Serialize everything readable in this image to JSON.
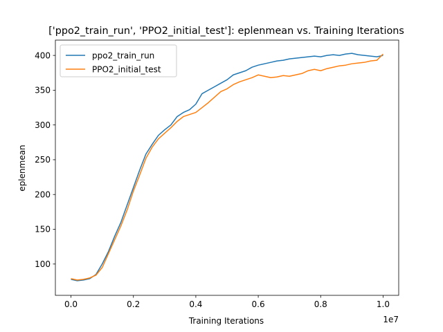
{
  "chart_data": {
    "type": "line",
    "title": "['ppo2_train_run', 'PPO2_initial_test']: eplenmean vs. Training Iterations",
    "xlabel": "Training Iterations",
    "ylabel": "eplenmean",
    "x_offset_label": "1e7",
    "x_multiplier": 10000000,
    "xlim": [
      -0.05,
      1.05
    ],
    "ylim": [
      55,
      422
    ],
    "x_ticks": [
      0.0,
      0.2,
      0.4,
      0.6,
      0.8,
      1.0
    ],
    "x_tick_labels": [
      "0.0",
      "0.2",
      "0.4",
      "0.6",
      "0.8",
      "1.0"
    ],
    "y_ticks": [
      100,
      150,
      200,
      250,
      300,
      350,
      400
    ],
    "y_tick_labels": [
      "100",
      "150",
      "200",
      "250",
      "300",
      "350",
      "400"
    ],
    "grid": false,
    "legend_position": "top-left",
    "series": [
      {
        "name": "ppo2_train_run",
        "color": "#1f77b4",
        "points": [
          [
            0.0,
            78
          ],
          [
            0.02,
            76
          ],
          [
            0.04,
            77
          ],
          [
            0.06,
            79
          ],
          [
            0.08,
            85
          ],
          [
            0.1,
            100
          ],
          [
            0.12,
            118
          ],
          [
            0.14,
            140
          ],
          [
            0.16,
            160
          ],
          [
            0.18,
            185
          ],
          [
            0.2,
            210
          ],
          [
            0.22,
            235
          ],
          [
            0.24,
            258
          ],
          [
            0.26,
            272
          ],
          [
            0.28,
            285
          ],
          [
            0.3,
            293
          ],
          [
            0.32,
            300
          ],
          [
            0.34,
            312
          ],
          [
            0.36,
            318
          ],
          [
            0.38,
            322
          ],
          [
            0.4,
            330
          ],
          [
            0.42,
            345
          ],
          [
            0.44,
            350
          ],
          [
            0.46,
            355
          ],
          [
            0.48,
            360
          ],
          [
            0.5,
            365
          ],
          [
            0.52,
            372
          ],
          [
            0.54,
            375
          ],
          [
            0.56,
            378
          ],
          [
            0.58,
            383
          ],
          [
            0.6,
            386
          ],
          [
            0.62,
            388
          ],
          [
            0.64,
            390
          ],
          [
            0.66,
            392
          ],
          [
            0.68,
            393
          ],
          [
            0.7,
            395
          ],
          [
            0.72,
            396
          ],
          [
            0.74,
            397
          ],
          [
            0.76,
            398
          ],
          [
            0.78,
            399
          ],
          [
            0.8,
            398
          ],
          [
            0.82,
            400
          ],
          [
            0.84,
            401
          ],
          [
            0.86,
            400
          ],
          [
            0.88,
            402
          ],
          [
            0.9,
            403
          ],
          [
            0.92,
            401
          ],
          [
            0.94,
            400
          ],
          [
            0.96,
            399
          ],
          [
            0.98,
            398
          ],
          [
            1.0,
            400
          ]
        ]
      },
      {
        "name": "PPO2_initial_test",
        "color": "#ff7f0e",
        "points": [
          [
            0.0,
            79
          ],
          [
            0.02,
            77
          ],
          [
            0.04,
            78
          ],
          [
            0.06,
            80
          ],
          [
            0.08,
            84
          ],
          [
            0.1,
            95
          ],
          [
            0.12,
            115
          ],
          [
            0.14,
            135
          ],
          [
            0.16,
            155
          ],
          [
            0.18,
            178
          ],
          [
            0.2,
            205
          ],
          [
            0.22,
            228
          ],
          [
            0.24,
            252
          ],
          [
            0.26,
            268
          ],
          [
            0.28,
            280
          ],
          [
            0.3,
            288
          ],
          [
            0.32,
            296
          ],
          [
            0.34,
            305
          ],
          [
            0.36,
            312
          ],
          [
            0.38,
            315
          ],
          [
            0.4,
            318
          ],
          [
            0.42,
            325
          ],
          [
            0.44,
            332
          ],
          [
            0.46,
            340
          ],
          [
            0.48,
            348
          ],
          [
            0.5,
            352
          ],
          [
            0.52,
            358
          ],
          [
            0.54,
            362
          ],
          [
            0.56,
            365
          ],
          [
            0.58,
            368
          ],
          [
            0.6,
            372
          ],
          [
            0.62,
            370
          ],
          [
            0.64,
            368
          ],
          [
            0.66,
            369
          ],
          [
            0.68,
            371
          ],
          [
            0.7,
            370
          ],
          [
            0.72,
            372
          ],
          [
            0.74,
            374
          ],
          [
            0.76,
            378
          ],
          [
            0.78,
            380
          ],
          [
            0.8,
            378
          ],
          [
            0.82,
            381
          ],
          [
            0.84,
            383
          ],
          [
            0.86,
            385
          ],
          [
            0.88,
            386
          ],
          [
            0.9,
            388
          ],
          [
            0.92,
            389
          ],
          [
            0.94,
            390
          ],
          [
            0.96,
            392
          ],
          [
            0.98,
            393
          ],
          [
            1.0,
            402
          ]
        ]
      }
    ]
  }
}
